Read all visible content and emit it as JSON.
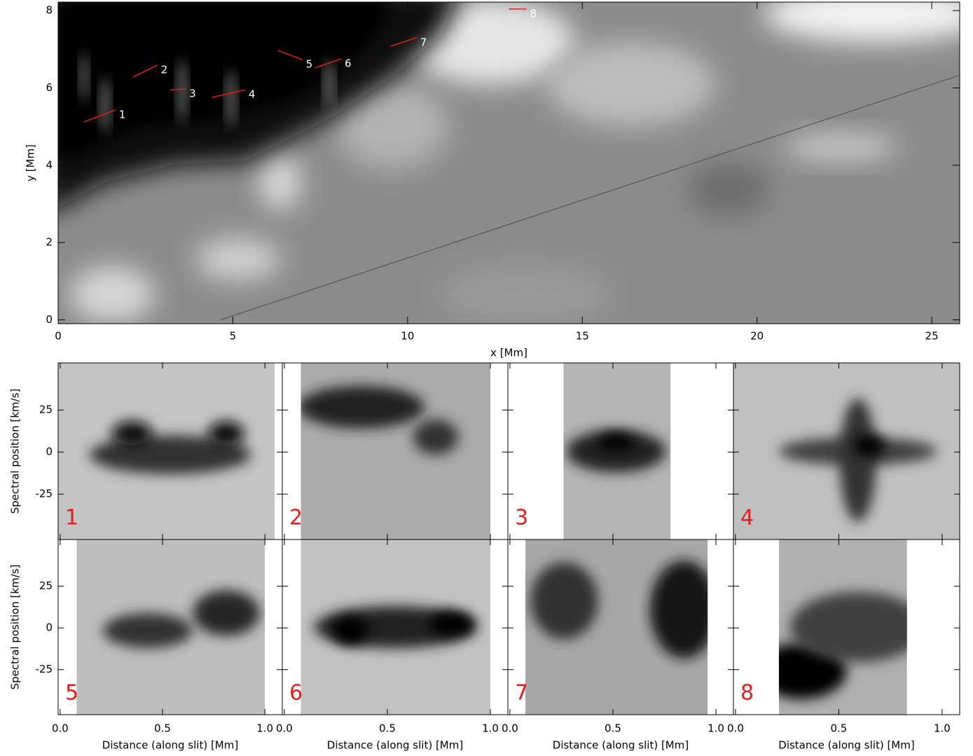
{
  "chart_data": [
    {
      "type": "image",
      "xlabel": "x [Mm]",
      "ylabel": "y [Mm]",
      "xlim": [
        0,
        25.8
      ],
      "ylim": [
        -0.1,
        8.22
      ],
      "xticks": [
        0,
        5,
        10,
        15,
        20,
        25
      ],
      "yticks": [
        0,
        2,
        4,
        6,
        8
      ],
      "slit_color": "#e0201c",
      "line_color": "#555555",
      "line": {
        "x": [
          4.65,
          25.8
        ],
        "y": [
          0,
          6.33
        ]
      },
      "slits": [
        {
          "label": "1",
          "x": [
            0.74,
            1.64
          ],
          "y": [
            5.12,
            5.43
          ]
        },
        {
          "label": "2",
          "x": [
            2.14,
            2.84
          ],
          "y": [
            6.28,
            6.59
          ]
        },
        {
          "label": "3",
          "x": [
            3.21,
            3.65
          ],
          "y": [
            5.95,
            5.97
          ]
        },
        {
          "label": "4",
          "x": [
            4.39,
            5.35
          ],
          "y": [
            5.75,
            5.95
          ]
        },
        {
          "label": "5",
          "x": [
            6.29,
            6.99
          ],
          "y": [
            6.97,
            6.73
          ]
        },
        {
          "label": "6",
          "x": [
            7.35,
            8.1
          ],
          "y": [
            6.52,
            6.75
          ]
        },
        {
          "label": "7",
          "x": [
            9.52,
            10.26
          ],
          "y": [
            7.08,
            7.3
          ]
        },
        {
          "label": "8",
          "x": [
            12.9,
            13.4
          ],
          "y": [
            8.04,
            8.04
          ]
        }
      ]
    },
    {
      "type": "panels",
      "xlabel": "Distance (along slit) [Mm]",
      "ylabel": "Spectral position [km/s]",
      "xlim": [
        -0.01,
        1.085
      ],
      "ylim": [
        -52,
        53
      ],
      "xticks": [
        {
          "value": 0,
          "label": "0.0"
        },
        {
          "value": 0.5,
          "label": "0.5"
        },
        {
          "value": 1,
          "label": "1.0"
        }
      ],
      "yticks": [
        -25,
        0,
        25
      ],
      "label_color": "#e0201c",
      "panels": [
        {
          "label": "1",
          "extent": [
            -0.01,
            1.048
          ]
        },
        {
          "label": "2",
          "extent": [
            0.08,
            1.0
          ]
        },
        {
          "label": "3",
          "extent": [
            0.26,
            0.78
          ]
        },
        {
          "label": "4",
          "extent": [
            -0.01,
            1.085
          ]
        },
        {
          "label": "5",
          "extent": [
            0.08,
            1.0
          ]
        },
        {
          "label": "6",
          "extent": [
            0.08,
            1.0
          ]
        },
        {
          "label": "7",
          "extent": [
            0.075,
            0.96
          ]
        },
        {
          "label": "8",
          "extent": [
            0.21,
            0.83
          ]
        }
      ]
    }
  ]
}
